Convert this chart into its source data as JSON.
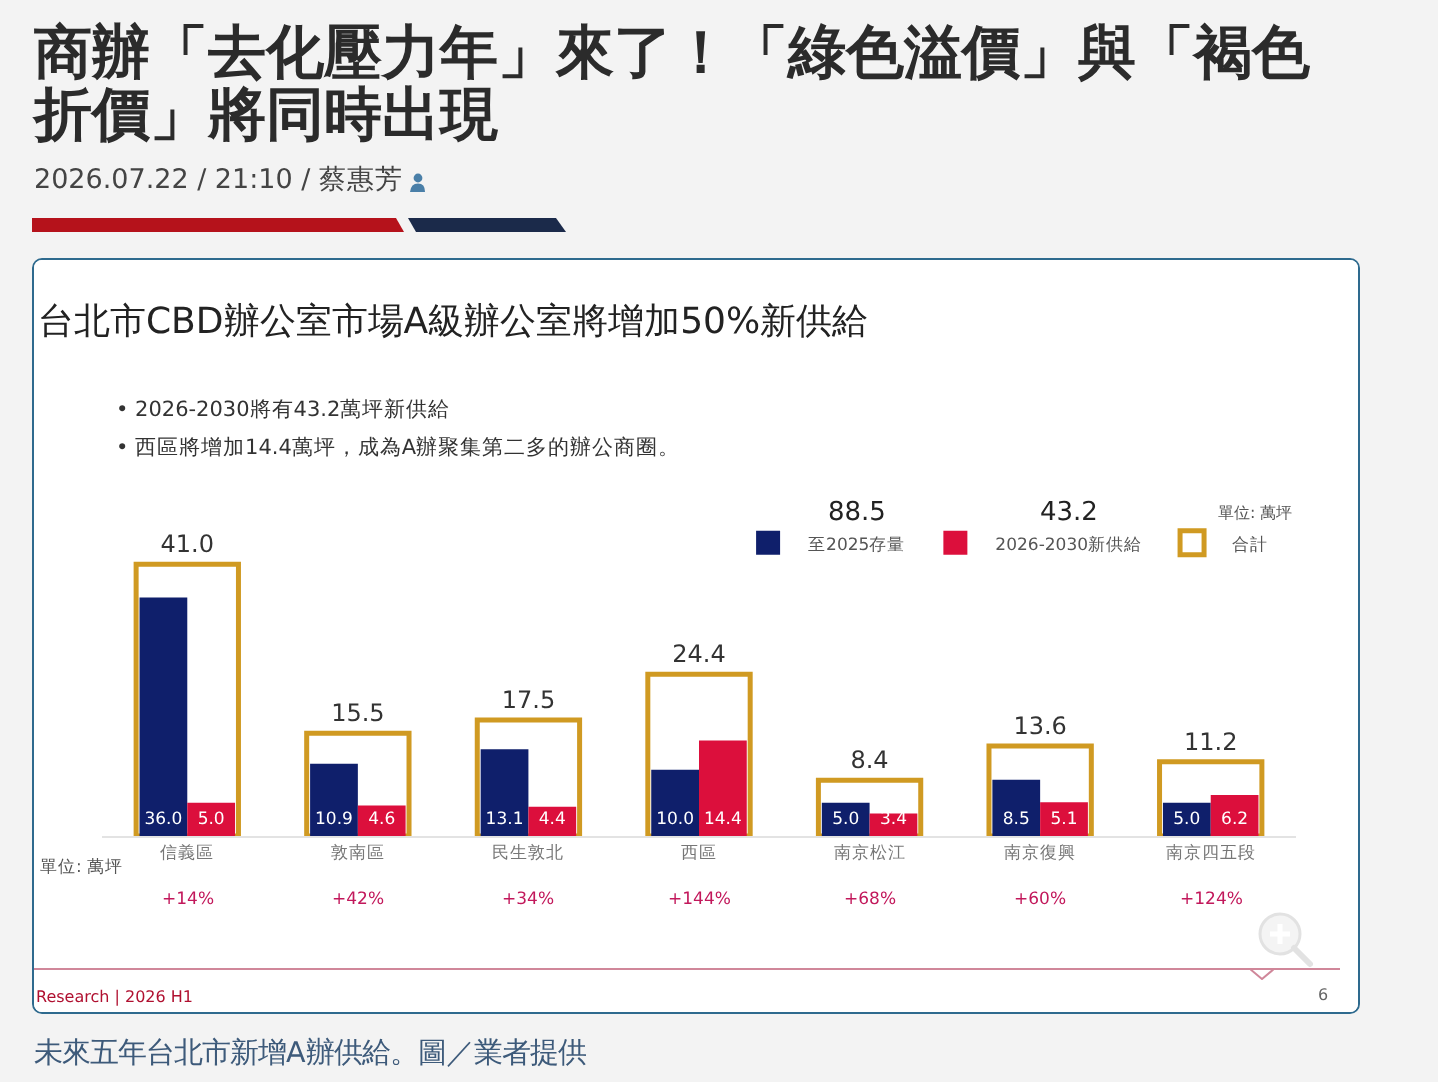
{
  "chart_data": {
    "type": "bar",
    "title": "台北市CBD辦公室市場A級辦公室將增加50%新供給",
    "categories": [
      "信義區",
      "敦南區",
      "民生敦北",
      "西區",
      "南京松江",
      "南京復興",
      "南京四五段"
    ],
    "series": [
      {
        "name": "至2025存量",
        "color": "#0f1f6b",
        "values": [
          36.0,
          10.9,
          13.1,
          10.0,
          5.0,
          8.5,
          5.0
        ],
        "value_labels": [
          "36.0",
          "10.9",
          "13.1",
          "10.0",
          "5.0",
          "8.5",
          "5.0"
        ]
      },
      {
        "name": "2026-2030新供給",
        "color": "#dc0f3c",
        "values": [
          5.0,
          4.6,
          4.4,
          14.4,
          3.4,
          5.1,
          6.2
        ],
        "value_labels": [
          "5.0",
          "4.6",
          "4.4",
          "14.4",
          "3.4",
          "5.1",
          "6.2"
        ]
      },
      {
        "name": "合計",
        "color": "#d09a22",
        "values": [
          41.0,
          15.5,
          17.5,
          24.4,
          8.4,
          13.6,
          11.2
        ],
        "value_labels": [
          "41.0",
          "15.5",
          "17.5",
          "24.4",
          "8.4",
          "13.6",
          "11.2"
        ]
      }
    ],
    "annotations": [
      "商辦「去化壓力年」來了！「綠色溢價」與「褐色折價」將同時出現",
      "2026.07.22 / 21:10 / 蔡惠芳",
      "• 2026-2030將有43.2萬坪新供給",
      "• 西區將增加14.4萬坪，成為A辦聚集第二多的辦公商圈。",
      "單位: 萬坪",
      "88.5",
      "43.2",
      "單位: 萬坪",
      "+14%",
      "+42%",
      "+34%",
      "+144%",
      "+68%",
      "+60%",
      "+124%",
      "Research | 2026 H1",
      "6",
      "未來五年台北市新增A辦供給。圖／業者提供"
    ],
    "legend": "top right",
    "grid": false
  }
}
